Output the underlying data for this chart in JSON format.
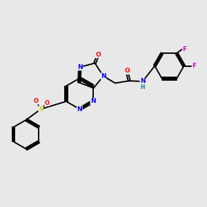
{
  "bg_color": "#e8e8e8",
  "bond_color": "#000000",
  "atom_colors": {
    "N": "#0000ff",
    "O": "#ff0000",
    "S": "#cccc00",
    "F": "#cc00cc",
    "H": "#008080",
    "C": "#000000"
  },
  "lw": 1.4,
  "fs": 6.5
}
